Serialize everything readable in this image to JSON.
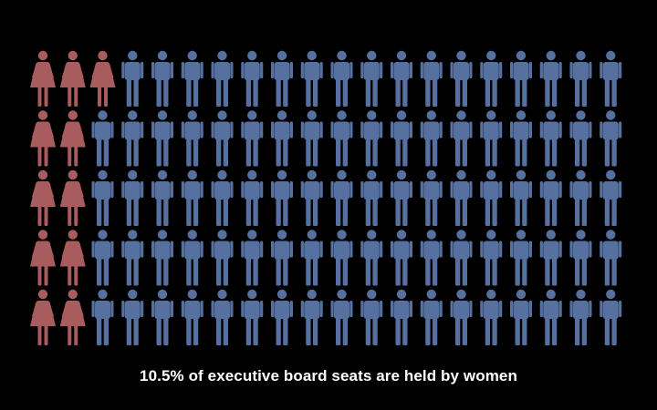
{
  "caption": "10.5% of executive board seats are held by women",
  "chart_data": {
    "type": "pictogram",
    "title": "10.5% of executive board seats are held by women",
    "rows": 5,
    "columns": 20,
    "total_icons": 100,
    "women_per_row": [
      3,
      2,
      2,
      2,
      2
    ],
    "series": [
      {
        "name": "Women",
        "icon": "female-figure-icon",
        "count": 11,
        "color": "#a85c5e"
      },
      {
        "name": "Men",
        "icon": "male-figure-icon",
        "count": 89,
        "color": "#5670a0"
      }
    ]
  }
}
